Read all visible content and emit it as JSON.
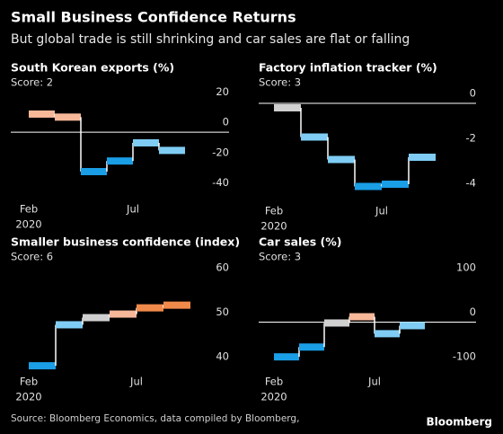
{
  "title": "Small Business Confidence Returns",
  "subtitle": "But global trade is still shrinking and car sales are flat or falling",
  "source": "Source: Bloomberg Economics, data compiled by Bloomberg,",
  "brand": "Bloomberg",
  "chart_data": [
    {
      "type": "step",
      "title": "South Korean exports (%)",
      "score": "Score: 2",
      "categories": [
        "Feb",
        null,
        null,
        null,
        "Jul",
        null
      ],
      "year_label": "2020",
      "values": [
        12,
        10,
        -26,
        -19,
        -7,
        -12
      ],
      "colors": [
        "#f7b89a",
        "#f7b89a",
        "#1a9ee6",
        "#1a9ee6",
        "#7fcdf5",
        "#7fcdf5"
      ],
      "ylim": [
        -45,
        28
      ],
      "yticks": [
        20,
        0,
        -20,
        -40
      ],
      "zero_line": true
    },
    {
      "type": "step",
      "title": "Factory inflation tracker (%)",
      "score": "Score: 3",
      "categories": [
        "Feb",
        null,
        null,
        null,
        "Jul",
        null
      ],
      "year_label": "2020",
      "values": [
        -0.2,
        -1.5,
        -2.5,
        -3.7,
        -3.6,
        -2.4
      ],
      "colors": [
        "#d0d0d0",
        "#7fcdf5",
        "#7fcdf5",
        "#1a9ee6",
        "#1a9ee6",
        "#7fcdf5"
      ],
      "ylim": [
        -4.4,
        0.6
      ],
      "yticks": [
        0,
        -2,
        -4
      ],
      "zero_line": true
    },
    {
      "type": "step",
      "title": "Smaller business confidence (index)",
      "score": "Score: 6",
      "categories": [
        "Feb",
        null,
        null,
        null,
        "Jul",
        null
      ],
      "year_label": "2020",
      "values": [
        40.2,
        49.4,
        51,
        51.8,
        53.2,
        53.8
      ],
      "colors": [
        "#1a9ee6",
        "#7fcdf5",
        "#d0d0d0",
        "#f7b89a",
        "#f08a4b",
        "#f08a4b"
      ],
      "ylim": [
        38.6,
        62.8
      ],
      "yticks": [
        60,
        50,
        40
      ],
      "zero_line": false
    },
    {
      "type": "step",
      "title": "Car sales (%)",
      "score": "Score: 3",
      "categories": [
        "Feb",
        null,
        null,
        null,
        "Jul",
        null
      ],
      "year_label": "2020",
      "values": [
        -78,
        -56,
        -2,
        12,
        -26,
        -8
      ],
      "colors": [
        "#1a9ee6",
        "#1a9ee6",
        "#d0d0d0",
        "#f7b89a",
        "#7fcdf5",
        "#7fcdf5"
      ],
      "ylim": [
        -114,
        128
      ],
      "yticks": [
        100,
        0,
        -100
      ],
      "zero_line": true
    }
  ]
}
